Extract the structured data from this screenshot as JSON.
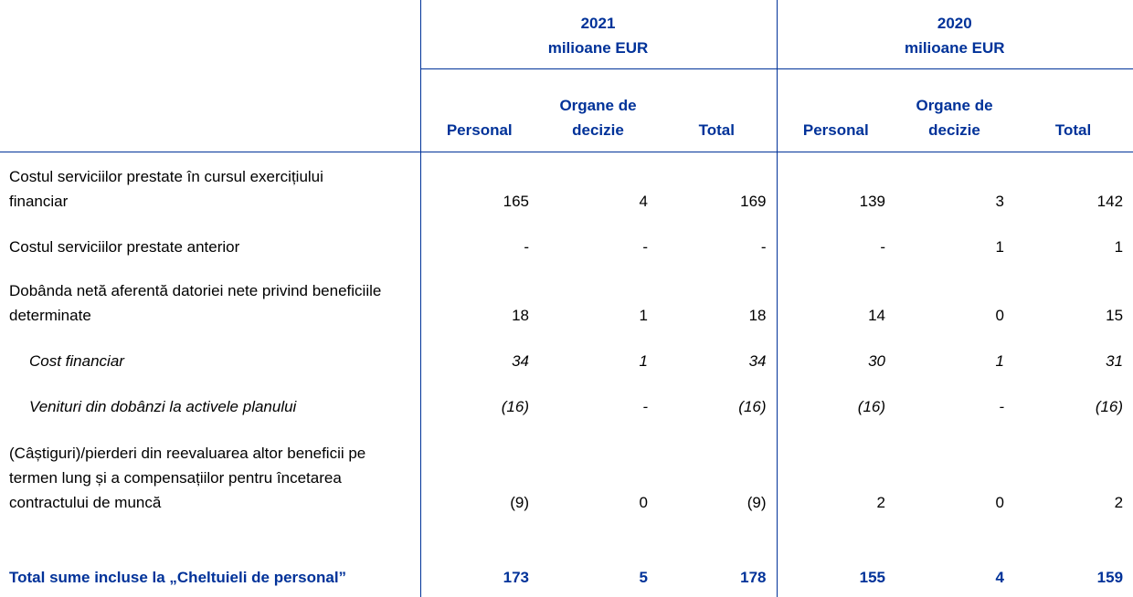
{
  "table": {
    "groups": [
      {
        "year": "2021",
        "unit": "milioane EUR"
      },
      {
        "year": "2020",
        "unit": "milioane EUR"
      }
    ],
    "columns": [
      "Personal",
      "Organe de decizie",
      "Total",
      "Personal",
      "Organe de decizie",
      "Total"
    ],
    "rows": [
      {
        "label": "Costul serviciilor prestate în cursul exercițiului financiar",
        "style": "normal",
        "values": [
          "165",
          "4",
          "169",
          "139",
          "3",
          "142"
        ]
      },
      {
        "label": "Costul serviciilor prestate anterior",
        "style": "normal",
        "values": [
          "-",
          "-",
          "-",
          "-",
          "1",
          "1"
        ]
      },
      {
        "label": "Dobânda netă aferentă datoriei nete privind beneficiile determinate",
        "style": "normal",
        "values": [
          "18",
          "1",
          "18",
          "14",
          "0",
          "15"
        ]
      },
      {
        "label": "Cost financiar",
        "style": "italic",
        "values": [
          "34",
          "1",
          "34",
          "30",
          "1",
          "31"
        ]
      },
      {
        "label": "Venituri din dobânzi la activele planului",
        "style": "italic",
        "values": [
          "(16)",
          "-",
          "(16)",
          "(16)",
          "-",
          "(16)"
        ]
      },
      {
        "label": "(Câștiguri)/pierderi din reevaluarea altor beneficii pe termen lung și a compensațiilor pentru încetarea contractului de muncă",
        "style": "normal",
        "values": [
          "(9)",
          "0",
          "(9)",
          "2",
          "0",
          "2"
        ]
      },
      {
        "label": "Total sume incluse la „Cheltuieli de personal”",
        "style": "total",
        "values": [
          "173",
          "5",
          "178",
          "155",
          "4",
          "159"
        ]
      }
    ]
  }
}
